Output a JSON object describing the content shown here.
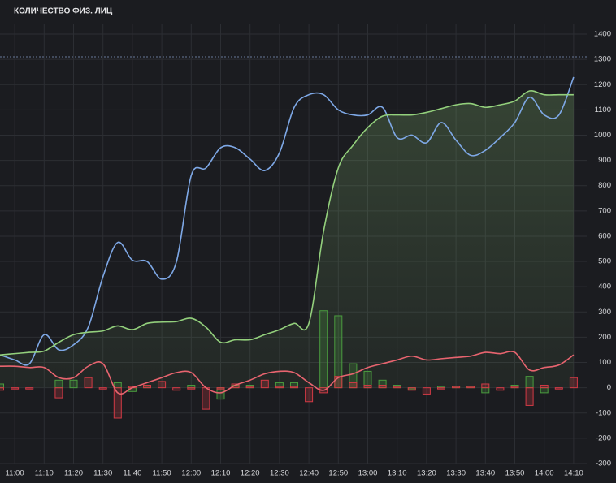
{
  "chart_data": {
    "type": "line",
    "title": "КОЛИЧЕСТВО ФИЗ. ЛИЦ",
    "categories": [
      null,
      "11:00",
      null,
      "11:10",
      null,
      "11:20",
      null,
      "11:30",
      null,
      "11:40",
      null,
      "11:50",
      null,
      "12:00",
      null,
      "12:10",
      null,
      "12:20",
      null,
      "12:30",
      null,
      "12:40",
      null,
      "12:50",
      null,
      "13:00",
      null,
      "13:10",
      null,
      "13:20",
      null,
      "13:30",
      null,
      "13:40",
      null,
      "13:50",
      null,
      "14:00",
      null,
      "14:10"
    ],
    "series": [
      {
        "color": "#7ea8e6",
        "values": [
          130,
          110,
          95,
          210,
          150,
          170,
          240,
          440,
          575,
          505,
          500,
          430,
          500,
          840,
          870,
          950,
          950,
          905,
          860,
          930,
          1110,
          1160,
          1160,
          1100,
          1080,
          1080,
          1110,
          990,
          1000,
          970,
          1050,
          980,
          920,
          940,
          990,
          1050,
          1150,
          1080,
          1080,
          1230
        ]
      },
      {
        "color": "#93d07c",
        "area": true,
        "values": [
          130,
          135,
          140,
          145,
          180,
          210,
          220,
          225,
          245,
          230,
          255,
          260,
          262,
          275,
          240,
          180,
          190,
          190,
          210,
          230,
          255,
          255,
          620,
          870,
          960,
          1030,
          1075,
          1080,
          1080,
          1090,
          1105,
          1120,
          1125,
          1110,
          1120,
          1135,
          1175,
          1160,
          1160,
          1160
        ]
      },
      {
        "color": "#e8646f",
        "values": [
          85,
          85,
          80,
          80,
          40,
          40,
          85,
          95,
          -20,
          0,
          20,
          40,
          60,
          60,
          0,
          -20,
          10,
          30,
          55,
          65,
          60,
          20,
          -10,
          40,
          55,
          80,
          95,
          110,
          125,
          110,
          115,
          120,
          125,
          140,
          135,
          140,
          70,
          80,
          90,
          130
        ]
      }
    ],
    "bars": [
      {
        "color": "#4a9c3f",
        "values": [
          15,
          null,
          null,
          null,
          30,
          30,
          null,
          null,
          20,
          -15,
          10,
          null,
          null,
          10,
          null,
          -45,
          10,
          10,
          null,
          20,
          20,
          null,
          305,
          285,
          95,
          65,
          30,
          10,
          -5,
          null,
          5,
          5,
          5,
          -20,
          null,
          10,
          45,
          -20,
          null,
          null
        ]
      },
      {
        "color": "#d23a45",
        "values": [
          -10,
          -5,
          -5,
          null,
          -40,
          null,
          40,
          -5,
          -120,
          5,
          10,
          25,
          -10,
          -5,
          -85,
          -5,
          15,
          5,
          30,
          5,
          5,
          -55,
          -20,
          45,
          20,
          10,
          10,
          5,
          -10,
          -25,
          -5,
          5,
          5,
          15,
          -10,
          5,
          -70,
          10,
          -5,
          40
        ]
      }
    ],
    "hline": 1310,
    "ylim": [
      -300,
      1400
    ],
    "yticks": [
      -300,
      -200,
      -100,
      0,
      100,
      200,
      300,
      400,
      500,
      600,
      700,
      800,
      900,
      1000,
      1100,
      1200,
      1300,
      1400
    ],
    "grid": true
  }
}
